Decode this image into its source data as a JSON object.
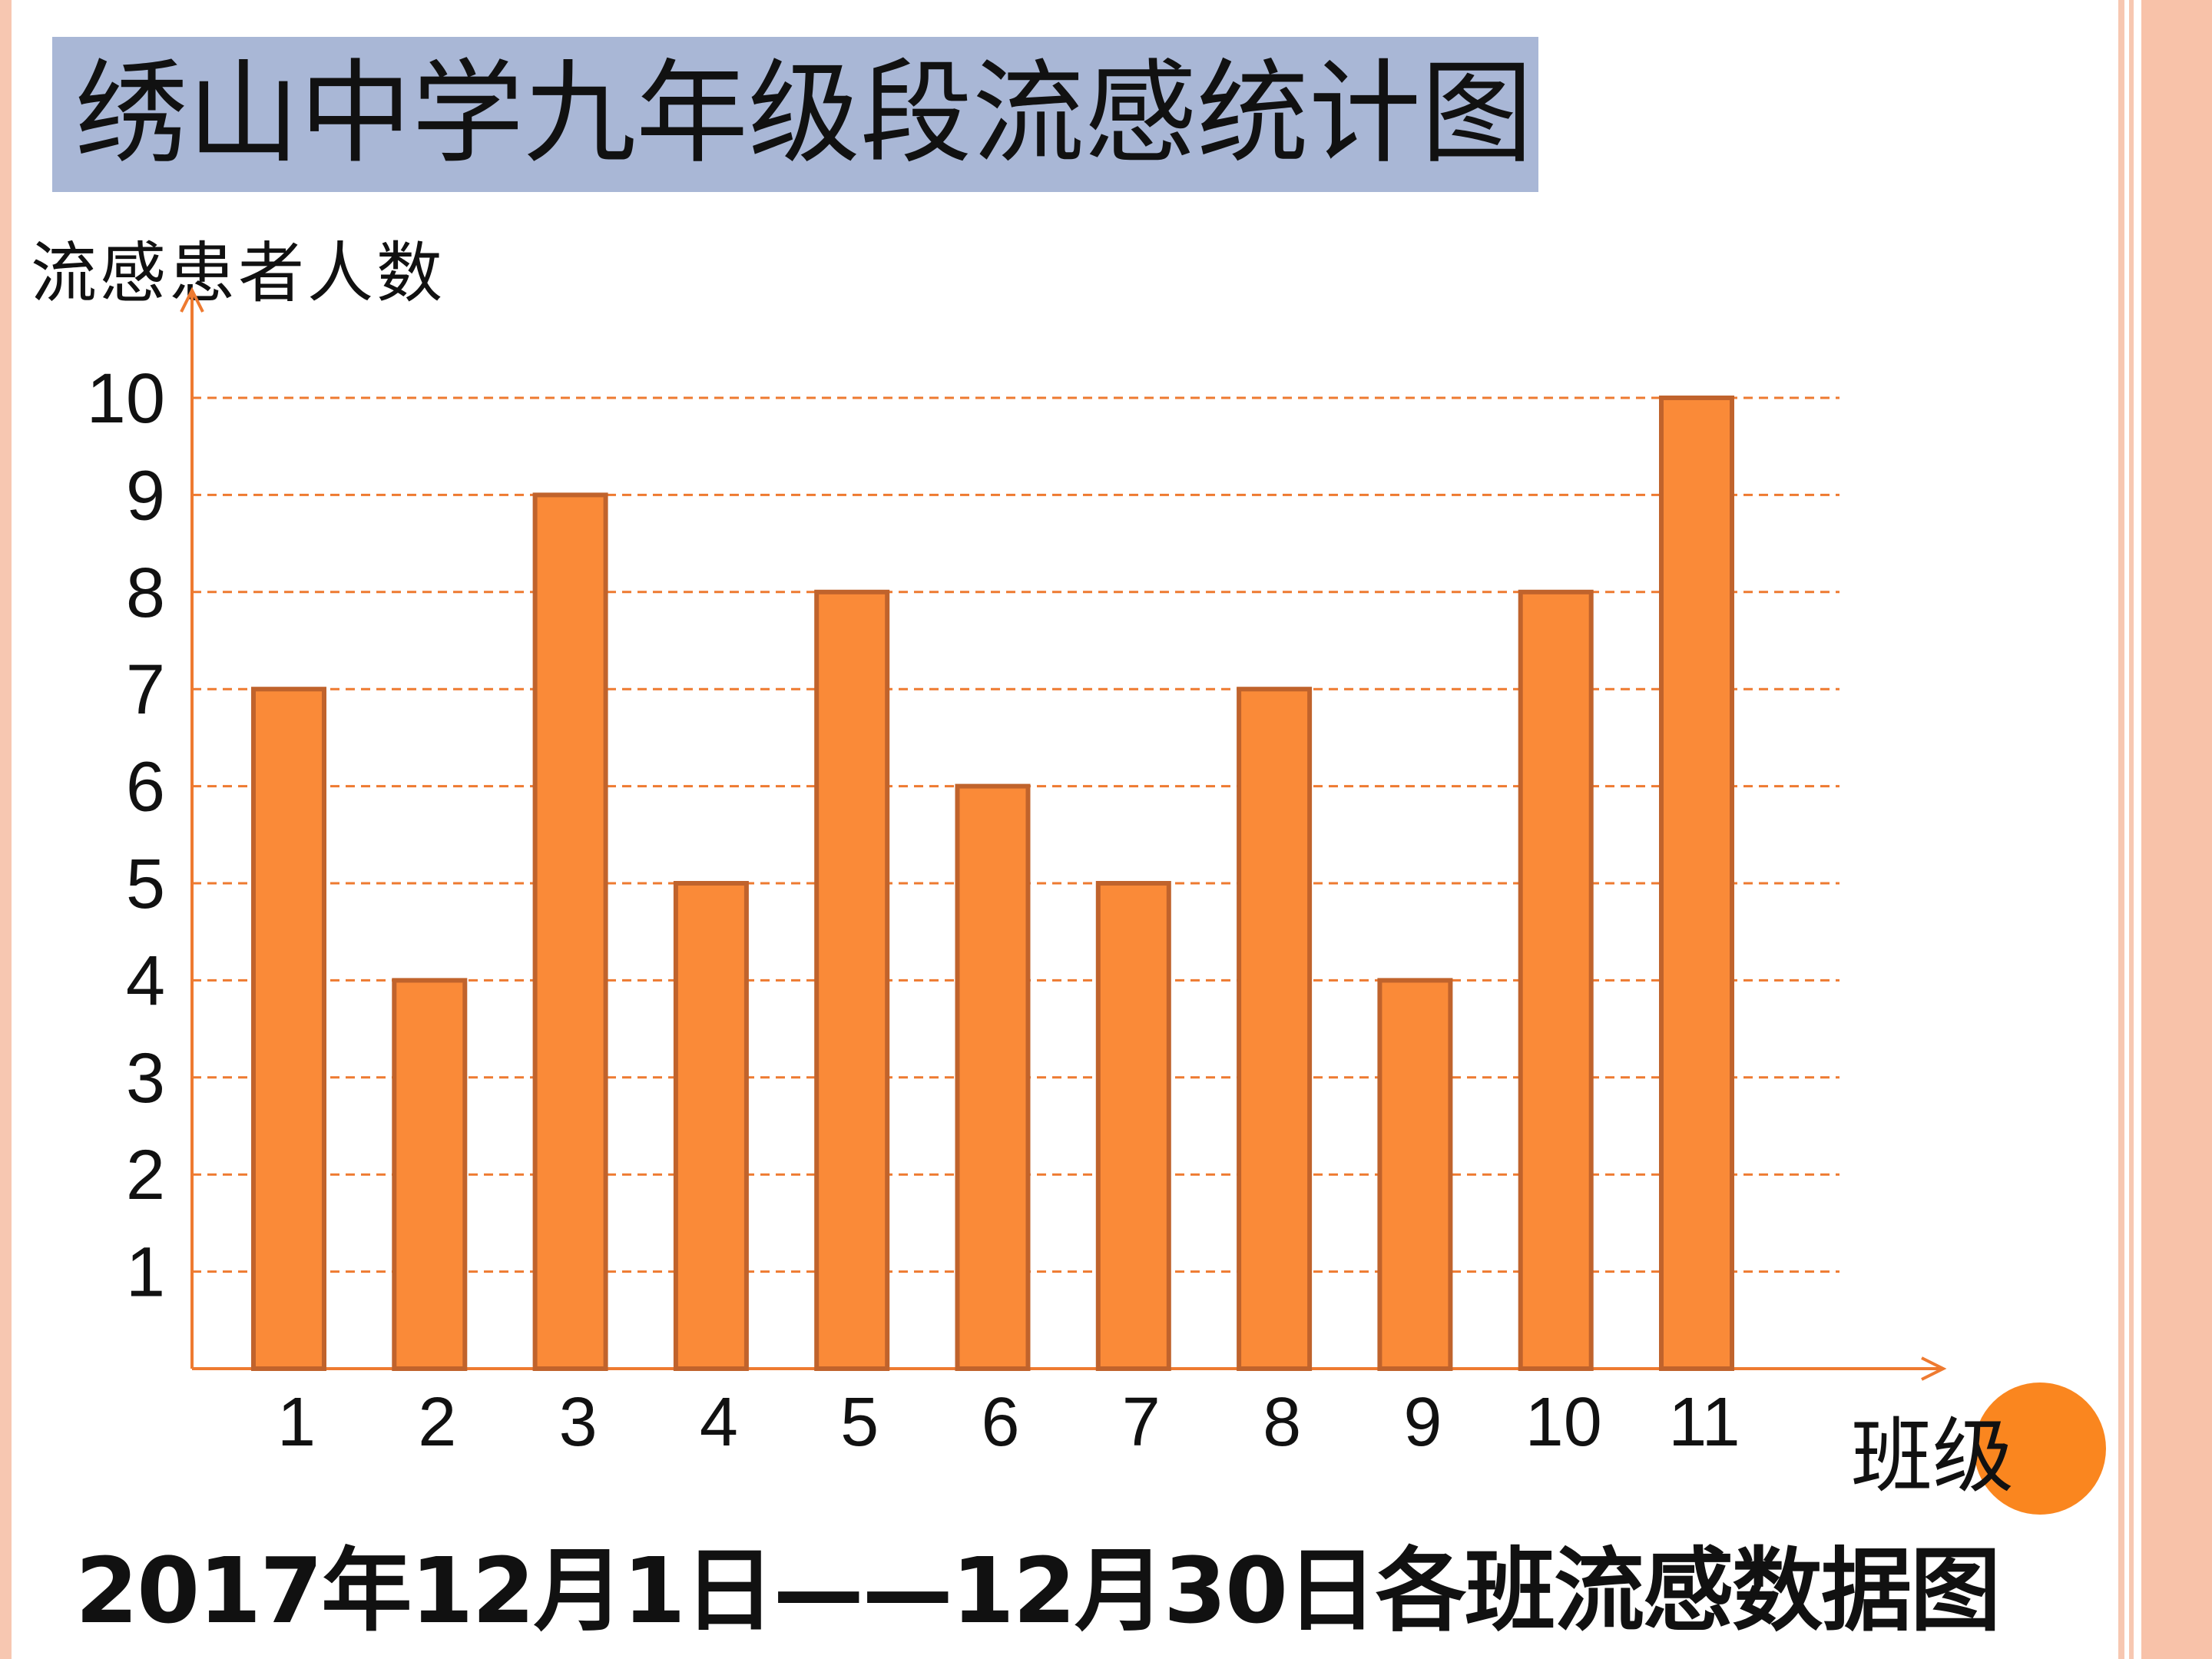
{
  "title": "绣山中学九年级段流感统计图",
  "caption": "2017年12月1日——12月30日各班流感数据图",
  "colors": {
    "bar_fill": "#fa8a38",
    "bar_stroke": "#c0632c",
    "grid": "#ee7a30",
    "axis": "#ee7a30",
    "title_bg": "#a9b7d6",
    "frame": "#f7c7b1",
    "accent_dot": "#fa861f"
  },
  "chart_data": {
    "type": "bar",
    "title": "绣山中学九年级段流感统计图",
    "ylabel": "流感患者人数",
    "xlabel": "班级",
    "categories": [
      "1",
      "2",
      "3",
      "4",
      "5",
      "6",
      "7",
      "8",
      "9",
      "10",
      "11"
    ],
    "values": [
      7,
      4,
      9,
      5,
      8,
      6,
      5,
      7,
      4,
      8,
      10
    ],
    "yticks": [
      1,
      2,
      3,
      4,
      5,
      6,
      7,
      8,
      9,
      10
    ],
    "ylim": [
      0,
      10
    ],
    "grid": "dashed horizontal",
    "legend": "none"
  }
}
